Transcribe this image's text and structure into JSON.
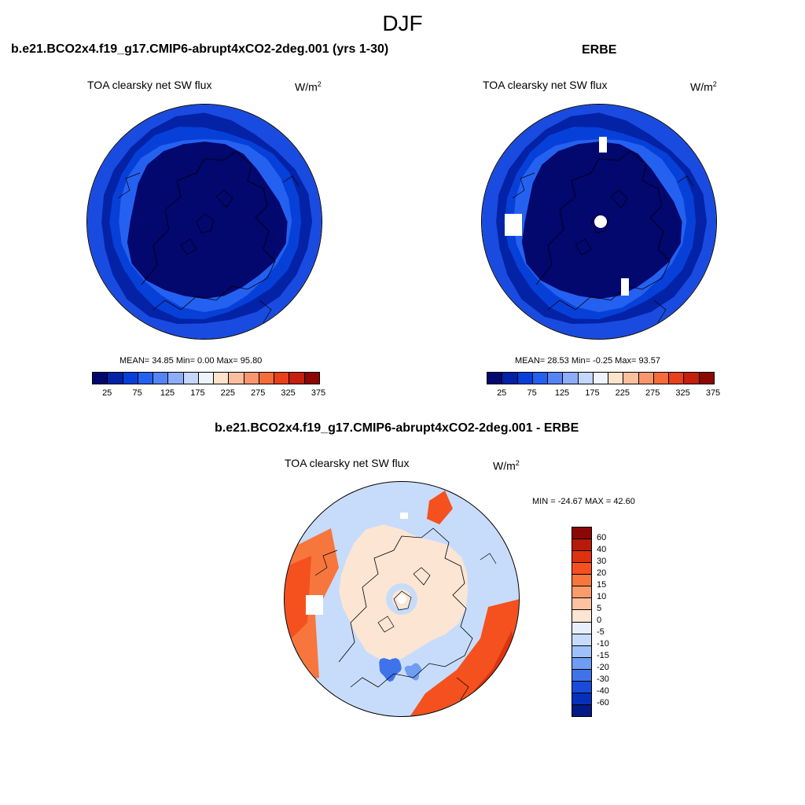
{
  "title": "DJF",
  "panels": {
    "model": {
      "case": "b.e21.BCO2x4.f19_g17.CMIP6-abrupt4xCO2-2deg.001 (yrs 1-30)",
      "variable": "TOA clearsky net SW flux",
      "units_base": "W/m",
      "units_exp": "2",
      "stats": "MEAN=  34.85  Min=   0.00  Max=  95.80"
    },
    "obs": {
      "case": "ERBE",
      "variable": "TOA clearsky net SW flux",
      "units_base": "W/m",
      "units_exp": "2",
      "stats": "MEAN=  28.53  Min=  -0.25  Max=  93.57"
    },
    "diff": {
      "case": "b.e21.BCO2x4.f19_g17.CMIP6-abrupt4xCO2-2deg.001 - ERBE",
      "variable": "TOA clearsky net SW flux",
      "units_base": "W/m",
      "units_exp": "2",
      "stats": "MIN = -24.67 MAX =  42.60"
    }
  },
  "chart_data": [
    {
      "type": "heatmap",
      "projection": "north-polar-stereographic",
      "title": "b.e21.BCO2x4.f19_g17.CMIP6-abrupt4xCO2-2deg.001 (yrs 1-30)",
      "variable": "TOA clearsky net SW flux",
      "units": "W/m2",
      "mean": 34.85,
      "min": 0.0,
      "max": 95.8,
      "colorbar": {
        "tick_labels": [
          "25",
          "75",
          "125",
          "175",
          "225",
          "275",
          "325",
          "375"
        ],
        "colors": [
          "#02086e",
          "#0322a6",
          "#0640d8",
          "#2561f0",
          "#5585f5",
          "#8eadf8",
          "#c4d6fb",
          "#eef3fe",
          "#fde3cc",
          "#fbbfa0",
          "#f8976f",
          "#f56c3d",
          "#e8401a",
          "#c4200c",
          "#8c0805"
        ]
      },
      "rings": [
        {
          "level": 25,
          "color": "#0322a6"
        },
        {
          "level": 50,
          "color": "#0640d8"
        },
        {
          "level": 75,
          "color": "#2561f0"
        }
      ]
    },
    {
      "type": "heatmap",
      "projection": "north-polar-stereographic",
      "title": "ERBE",
      "variable": "TOA clearsky net SW flux",
      "units": "W/m2",
      "mean": 28.53,
      "min": -0.25,
      "max": 93.57,
      "colorbar": {
        "tick_labels": [
          "25",
          "75",
          "125",
          "175",
          "225",
          "275",
          "325",
          "375"
        ],
        "colors": [
          "#02086e",
          "#0322a6",
          "#0640d8",
          "#2561f0",
          "#5585f5",
          "#8eadf8",
          "#c4d6fb",
          "#eef3fe",
          "#fde3cc",
          "#fbbfa0",
          "#f8976f",
          "#f56c3d",
          "#e8401a",
          "#c4200c",
          "#8c0805"
        ]
      },
      "rings": [
        {
          "level": 25,
          "color": "#0322a6"
        },
        {
          "level": 50,
          "color": "#0640d8"
        },
        {
          "level": 75,
          "color": "#2561f0"
        }
      ]
    },
    {
      "type": "heatmap",
      "projection": "north-polar-stereographic",
      "title": "b.e21.BCO2x4.f19_g17.CMIP6-abrupt4xCO2-2deg.001 - ERBE",
      "variable": "TOA clearsky net SW flux",
      "units": "W/m2",
      "min": -24.67,
      "max": 42.6,
      "colorbar": {
        "tick_labels": [
          "60",
          "40",
          "30",
          "20",
          "15",
          "10",
          "5",
          "0",
          "-5",
          "-10",
          "-15",
          "-20",
          "-30",
          "-40",
          "-60"
        ],
        "colors": [
          "#8c0805",
          "#b81a0a",
          "#de320f",
          "#f4511e",
          "#f7763e",
          "#f99c6c",
          "#fbc3a0",
          "#fde5d3",
          "#e6f0fd",
          "#c7dcfb",
          "#9fc1f8",
          "#6f9df3",
          "#3f73ea",
          "#1a4bd8",
          "#0730ba",
          "#041a85"
        ]
      }
    }
  ]
}
